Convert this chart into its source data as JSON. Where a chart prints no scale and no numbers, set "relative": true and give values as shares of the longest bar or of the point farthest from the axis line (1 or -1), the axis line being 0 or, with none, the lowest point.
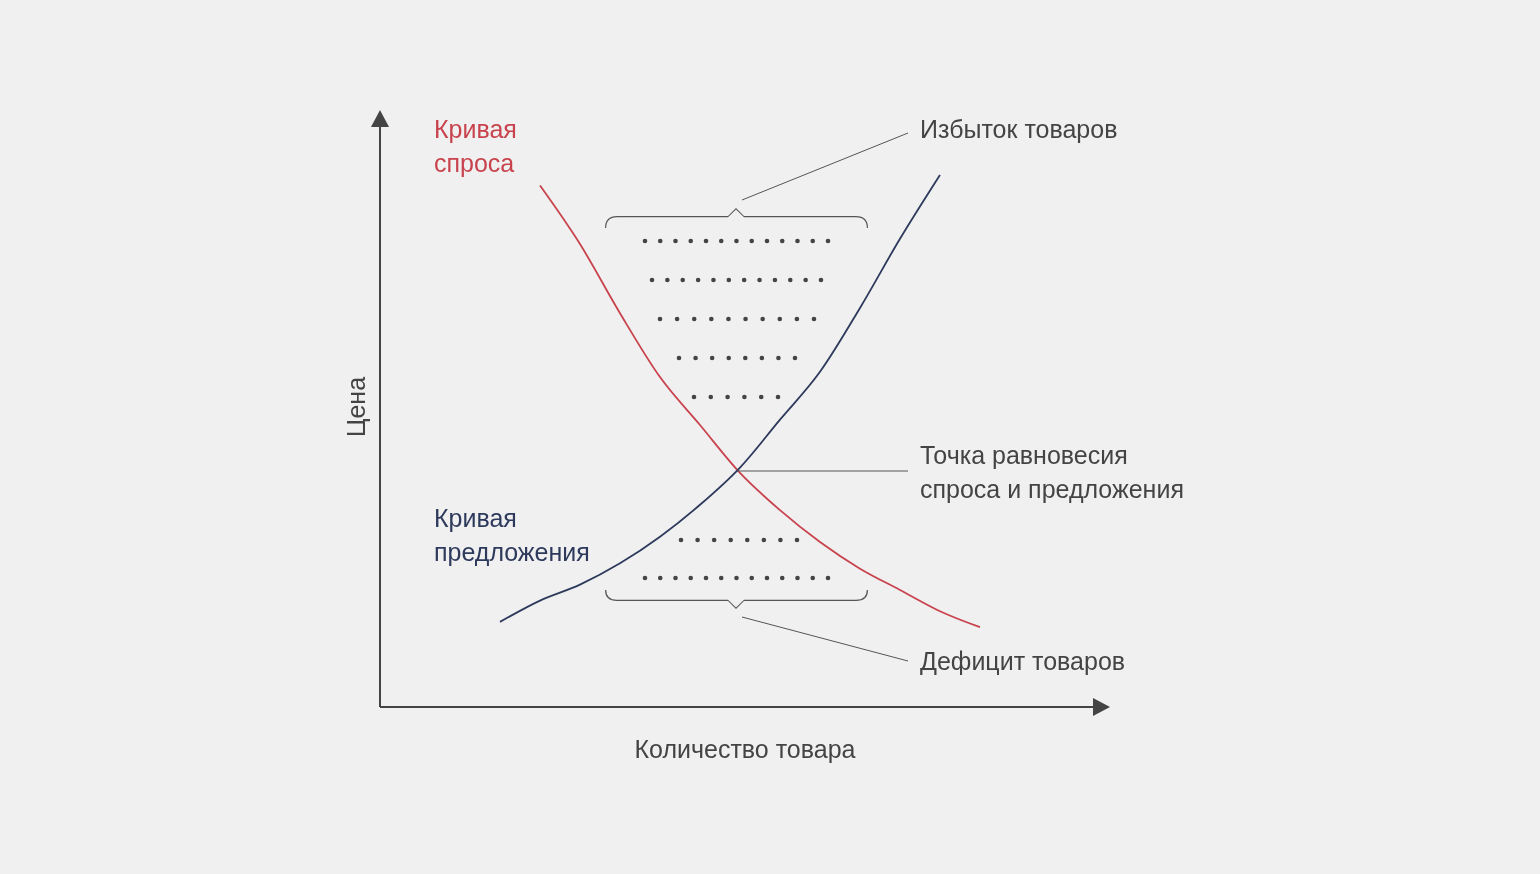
{
  "chart_data": {
    "type": "line",
    "relative": true,
    "marker": "none",
    "xlabel": "Количество товара",
    "ylabel": "Цена",
    "categories": [
      null,
      null,
      null,
      null,
      null,
      null,
      null,
      null,
      null,
      null,
      null,
      null,
      null
    ],
    "series": [
      {
        "name": "Кривая спроса",
        "color": "#c8434d",
        "values": [
          null,
          0.98,
          0.87,
          0.74,
          0.62,
          0.53,
          0.44,
          0.37,
          0.31,
          0.26,
          0.22,
          0.18,
          0.15
        ]
      },
      {
        "name": "Кривая предложения",
        "color": "#2e3a5c",
        "values": [
          0.16,
          0.2,
          0.23,
          0.27,
          0.32,
          0.38,
          0.45,
          0.54,
          0.63,
          0.75,
          0.88,
          1,
          null
        ]
      }
    ],
    "annotations": [
      "Избыток товаров",
      "Точка равновесия спроса и предложения",
      "Дефицит товаров"
    ]
  }
}
